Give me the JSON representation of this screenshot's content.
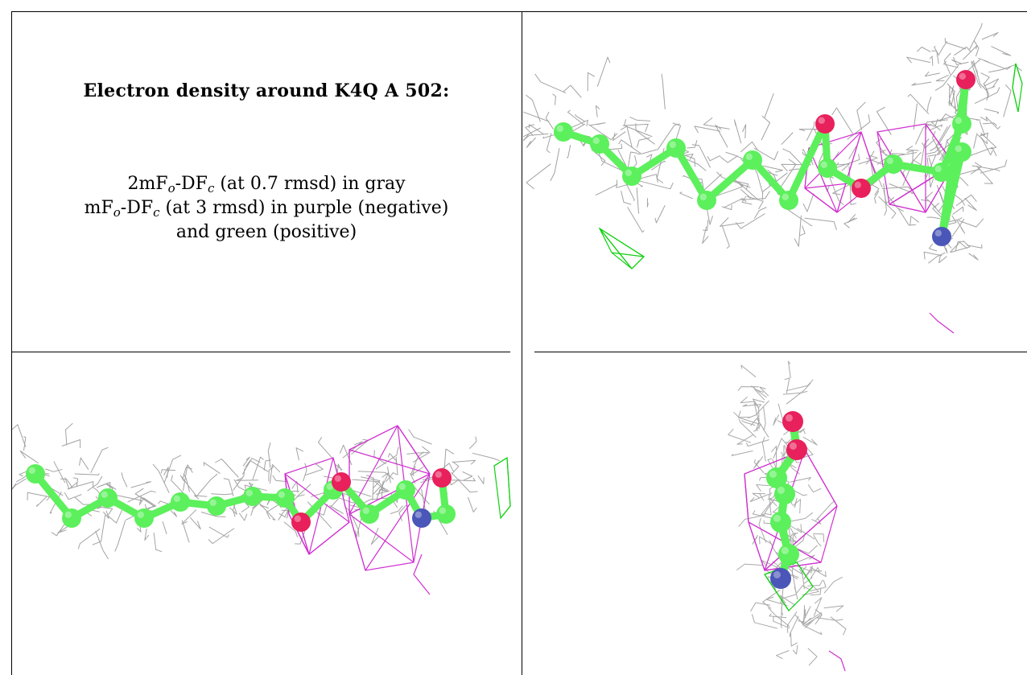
{
  "caption": {
    "title": "Electron density around K4Q A 502:",
    "line1": {
      "prefix": "2mF",
      "sub1": "o",
      "middle": "-DF",
      "sub2": "c",
      "suffix": " (at 0.7 rmsd) in gray"
    },
    "line2": {
      "prefix": "mF",
      "sub1": "o",
      "middle": "-DF",
      "sub2": "c",
      "suffix": " (at 3 rmsd) in purple (negative)"
    },
    "line3": "and green (positive)"
  },
  "colors": {
    "mesh_2fofc": "#8c8c8c",
    "mesh_negative": "#d030d0",
    "mesh_positive": "#10d010",
    "carbon": "#5cf05c",
    "oxygen": "#e8205c",
    "nitrogen": "#4a56b8"
  },
  "panels": [
    {
      "name": "view-top-right",
      "icon": "electron-density-view-1"
    },
    {
      "name": "view-bottom-left",
      "icon": "electron-density-view-2"
    },
    {
      "name": "view-bottom-right",
      "icon": "electron-density-view-3"
    }
  ]
}
